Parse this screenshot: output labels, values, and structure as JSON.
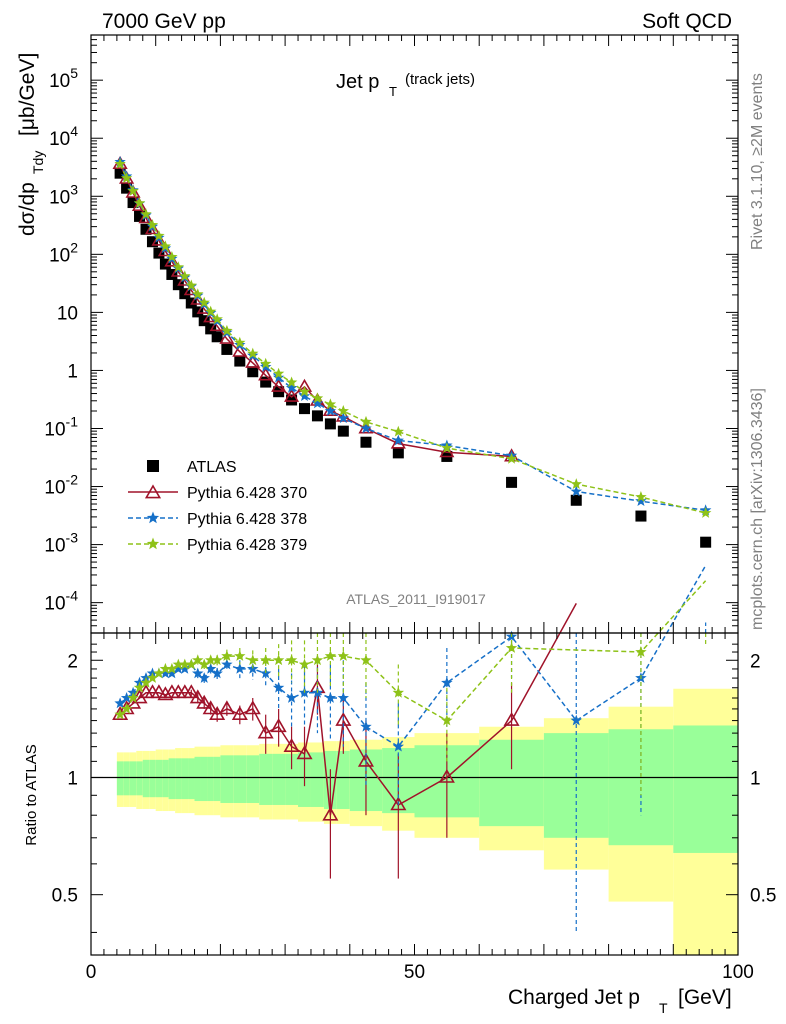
{
  "header": {
    "left": "7000 GeV pp",
    "right": "Soft QCD"
  },
  "side_labels": {
    "rivet": "Rivet 3.1.10, ≥2M events",
    "mcplots": "mcplots.cern.ch [arXiv:1306.3436]"
  },
  "main_panel": {
    "title_main": "Jet p",
    "title_sub": "T",
    "title_extra": "(track jets)",
    "ylabel_main": "dσ/dp",
    "ylabel_sub": "Tdy",
    "ylabel_unit": "[μb/GeV]",
    "watermark": "ATLAS_2011_I919017"
  },
  "ratio_panel": {
    "ylabel": "Ratio to ATLAS",
    "xlabel_main": "Charged Jet p",
    "xlabel_sub": "T",
    "xlabel_unit": "[GeV]"
  },
  "chart_data": [
    {
      "type": "scatter",
      "title": "Jet pT (track jets)",
      "xlabel": "Charged Jet pT [GeV]",
      "ylabel": "dσ/dpTdy [μb/GeV]",
      "xlim": [
        0,
        100
      ],
      "ylim": [
        3e-05,
        600000.0
      ],
      "yscale": "log",
      "y_ticks": [
        "10^-4",
        "10^-3",
        "10^-2",
        "10^-1",
        "1",
        "10",
        "10^2",
        "10^3",
        "10^4",
        "10^5"
      ],
      "legend_position": "bottom-left",
      "x": [
        4.5,
        5.5,
        6.5,
        7.5,
        8.5,
        9.5,
        10.5,
        11.5,
        12.5,
        13.5,
        14.5,
        15.5,
        16.5,
        17.5,
        18.5,
        19.5,
        21,
        23,
        25,
        27,
        29,
        31,
        33,
        35,
        37,
        39,
        42.5,
        47.5,
        55,
        65,
        75,
        85,
        95
      ],
      "series": [
        {
          "name": "ATLAS",
          "color": "#000000",
          "marker": "square",
          "values": [
            2500,
            1380,
            780,
            450,
            270,
            165,
            105,
            68,
            45,
            30,
            21,
            14.5,
            10.2,
            7.2,
            5.2,
            3.8,
            2.3,
            1.45,
            0.95,
            0.63,
            0.43,
            0.31,
            0.22,
            0.165,
            0.12,
            0.09,
            0.058,
            0.038,
            0.033,
            0.0118,
            0.0058,
            0.0031,
            0.0011
          ]
        },
        {
          "name": "Pythia 6.428 370",
          "color": "#a0132a",
          "marker": "open-triangle",
          "values": [
            3600,
            2000,
            1150,
            680,
            420,
            270,
            172,
            113,
            75,
            50,
            35,
            24,
            16.5,
            11.5,
            8.2,
            5.8,
            3.5,
            2.1,
            1.35,
            0.82,
            0.52,
            0.35,
            0.52,
            0.3,
            0.2,
            0.16,
            0.1,
            0.055,
            0.039,
            0.033,
            null,
            null,
            null
          ]
        },
        {
          "name": "Pythia 6.428 378",
          "color": "#1670c8",
          "marker": "star",
          "values": [
            3900,
            2200,
            1270,
            750,
            470,
            300,
            193,
            127,
            84,
            57,
            40,
            28,
            19.5,
            13.8,
            9.8,
            7.1,
            4.5,
            2.75,
            1.8,
            1.15,
            0.75,
            0.5,
            0.36,
            0.27,
            0.2,
            0.15,
            0.1,
            0.062,
            0.051,
            0.034,
            0.0082,
            0.0056,
            0.0039
          ]
        },
        {
          "name": "Pythia 6.428 379",
          "color": "#8ec218",
          "marker": "star",
          "values": [
            3600,
            2050,
            1230,
            760,
            490,
            320,
            208,
            137,
            90,
            60,
            42,
            29,
            20.5,
            14.7,
            10.3,
            7.6,
            4.8,
            3.0,
            1.95,
            1.3,
            0.88,
            0.62,
            0.43,
            0.33,
            0.26,
            0.2,
            0.13,
            0.088,
            0.046,
            0.03,
            0.011,
            0.0066,
            0.0035
          ]
        }
      ]
    },
    {
      "type": "line",
      "title": "",
      "xlabel": "Charged Jet pT [GeV]",
      "ylabel": "Ratio to ATLAS",
      "xlim": [
        0,
        100
      ],
      "ylim": [
        0.35,
        2.35
      ],
      "yscale": "log",
      "y_ticks": [
        0.5,
        1,
        2
      ],
      "x_ticks": [
        0,
        50,
        100
      ],
      "x": [
        4.5,
        5.5,
        6.5,
        7.5,
        8.5,
        9.5,
        10.5,
        11.5,
        12.5,
        13.5,
        14.5,
        15.5,
        16.5,
        17.5,
        18.5,
        19.5,
        21,
        23,
        25,
        27,
        29,
        31,
        33,
        35,
        37,
        39,
        42.5,
        47.5,
        55,
        65,
        75,
        85,
        95
      ],
      "band_edges": [
        4,
        5,
        6,
        7,
        8,
        9,
        10,
        11,
        12,
        13,
        14,
        15,
        16,
        17,
        18,
        19,
        20,
        22,
        24,
        26,
        28,
        30,
        32,
        34,
        36,
        38,
        40,
        45,
        50,
        60,
        70,
        80,
        90,
        100
      ],
      "band_inner": [
        0.1,
        0.1,
        0.1,
        0.1,
        0.11,
        0.11,
        0.11,
        0.11,
        0.12,
        0.12,
        0.12,
        0.12,
        0.13,
        0.13,
        0.13,
        0.13,
        0.14,
        0.14,
        0.14,
        0.15,
        0.15,
        0.15,
        0.16,
        0.16,
        0.17,
        0.17,
        0.18,
        0.19,
        0.21,
        0.25,
        0.3,
        0.33,
        0.36
      ],
      "band_outer": [
        0.16,
        0.16,
        0.16,
        0.17,
        0.17,
        0.17,
        0.18,
        0.18,
        0.18,
        0.19,
        0.19,
        0.19,
        0.2,
        0.2,
        0.2,
        0.2,
        0.21,
        0.21,
        0.21,
        0.22,
        0.22,
        0.22,
        0.23,
        0.23,
        0.24,
        0.24,
        0.25,
        0.27,
        0.3,
        0.35,
        0.42,
        0.52,
        0.69
      ],
      "series": [
        {
          "name": "Pythia 6.428 370",
          "color": "#a0132a",
          "values": [
            1.45,
            1.5,
            1.55,
            1.6,
            1.65,
            1.65,
            1.65,
            1.63,
            1.65,
            1.65,
            1.65,
            1.65,
            1.6,
            1.55,
            1.5,
            1.45,
            1.5,
            1.45,
            1.5,
            1.3,
            1.35,
            1.2,
            1.15,
            1.7,
            0.8,
            1.4,
            1.1,
            0.85,
            1.0,
            1.4,
            2.8,
            null,
            null
          ],
          "err_lo": [
            0,
            0,
            0,
            0,
            0,
            0,
            0,
            0,
            0,
            0,
            0,
            0.03,
            0.05,
            0.05,
            0.05,
            0.06,
            0.06,
            0.08,
            0.1,
            0.15,
            0.15,
            0.15,
            0.2,
            0.25,
            0.25,
            0.25,
            0.3,
            0.3,
            0.3,
            0.35,
            0,
            0,
            0
          ],
          "err_hi": [
            0,
            0,
            0,
            0,
            0,
            0,
            0,
            0,
            0,
            0,
            0,
            0.03,
            0.05,
            0.05,
            0.05,
            0.06,
            0.06,
            0.08,
            0.1,
            0.15,
            0.15,
            0.15,
            0.2,
            0.25,
            0.25,
            0.25,
            0.3,
            0.3,
            0.3,
            0.35,
            0,
            0,
            0
          ]
        },
        {
          "name": "Pythia 6.428 378",
          "color": "#1670c8",
          "values": [
            1.55,
            1.6,
            1.65,
            1.75,
            1.8,
            1.85,
            1.85,
            1.85,
            1.85,
            1.9,
            1.9,
            1.95,
            1.85,
            1.8,
            1.9,
            1.85,
            1.95,
            1.9,
            1.9,
            1.85,
            1.7,
            1.6,
            1.65,
            1.65,
            1.6,
            1.6,
            1.35,
            1.2,
            1.75,
            2.3,
            1.4,
            1.8,
            3.5
          ],
          "err_lo": [
            0,
            0,
            0,
            0,
            0,
            0,
            0,
            0,
            0,
            0,
            0,
            0.04,
            0.05,
            0.05,
            0.05,
            0.06,
            0.08,
            0.1,
            0.12,
            0.15,
            0.2,
            0.25,
            0.3,
            0.35,
            0.35,
            0.4,
            0.4,
            0.35,
            0.4,
            0.5,
            1.0,
            1.0,
            1.0
          ],
          "err_hi": [
            0,
            0,
            0,
            0,
            0,
            0,
            0,
            0,
            0,
            0,
            0,
            0.04,
            0.05,
            0.05,
            0.05,
            0.06,
            0.08,
            0.1,
            0.12,
            0.15,
            0.2,
            0.25,
            0.3,
            0.35,
            0.35,
            0.4,
            0.4,
            0.35,
            0.4,
            0.5,
            1.0,
            1.0,
            1.0
          ]
        },
        {
          "name": "Pythia 6.428 379",
          "color": "#8ec218",
          "values": [
            1.45,
            1.5,
            1.6,
            1.7,
            1.75,
            1.8,
            1.85,
            1.9,
            1.9,
            1.95,
            1.95,
            1.95,
            2.0,
            1.95,
            2.0,
            2.0,
            2.05,
            2.05,
            2.0,
            2.0,
            2.0,
            2.0,
            1.95,
            2.0,
            2.05,
            2.05,
            2.0,
            1.65,
            1.4,
            2.15,
            null,
            2.1,
            3.2
          ],
          "err_lo": [
            0,
            0,
            0,
            0,
            0,
            0,
            0,
            0,
            0,
            0,
            0,
            0.04,
            0.05,
            0.05,
            0.05,
            0.06,
            0.08,
            0.1,
            0.12,
            0.15,
            0.2,
            0.25,
            0.3,
            0.35,
            0.35,
            0.4,
            0.4,
            0.3,
            0.3,
            0.5,
            0,
            1.2,
            1.0
          ],
          "err_hi": [
            0,
            0,
            0,
            0,
            0,
            0,
            0,
            0,
            0,
            0,
            0,
            0.04,
            0.05,
            0.05,
            0.05,
            0.06,
            0.08,
            0.1,
            0.12,
            0.15,
            0.2,
            0.25,
            0.3,
            0.35,
            0.35,
            0.4,
            0.4,
            0.3,
            0.3,
            0.5,
            0,
            1.2,
            1.0
          ]
        }
      ]
    }
  ]
}
